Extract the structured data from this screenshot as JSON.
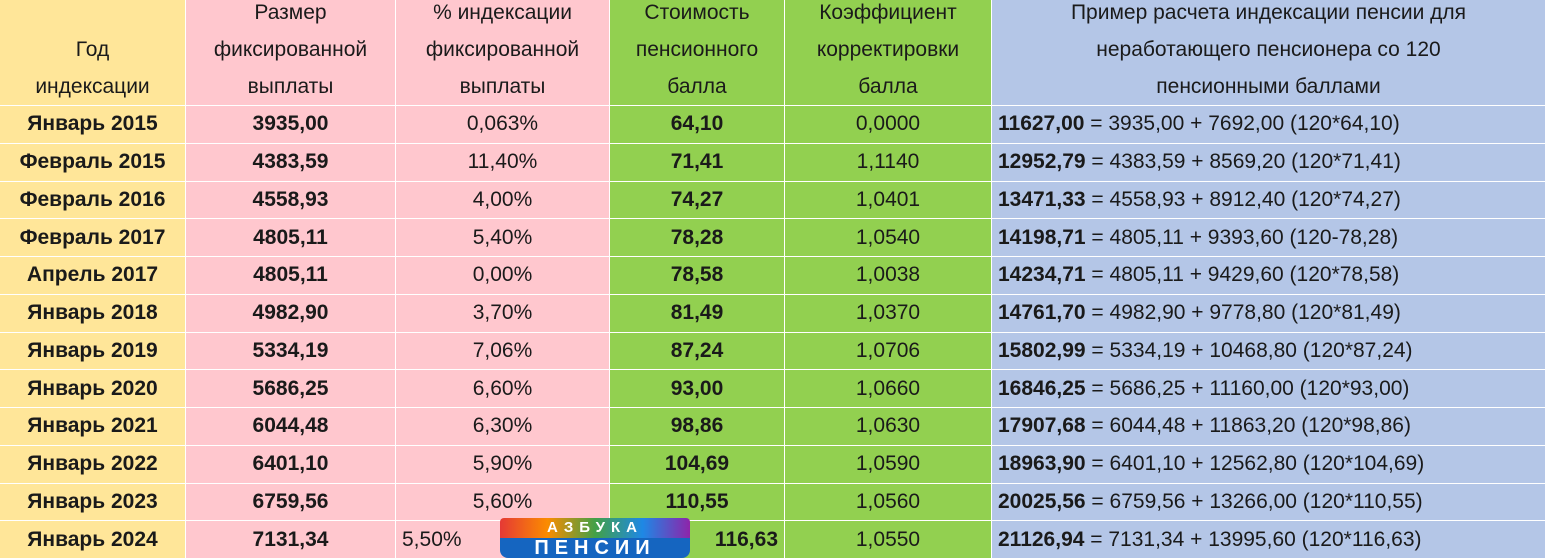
{
  "table": {
    "header": [
      [
        "Год",
        "индексации"
      ],
      [
        "Размер",
        "фиксированной",
        "выплаты"
      ],
      [
        "% индексации",
        "фиксированной",
        "выплаты"
      ],
      [
        "Стоимость",
        "пенсионного",
        "балла"
      ],
      [
        "Коэффициент",
        "корректировки",
        "балла"
      ],
      [
        "Пример расчета индексации пенсии для",
        "неработающего пенсионера со 120",
        "пенсионными баллами"
      ]
    ],
    "rows": [
      [
        "Январь 2015",
        "3935,00",
        "0,063%",
        "64,10",
        "0,0000",
        "11627,00",
        " = 3935,00 + 7692,00 (120*64,10)"
      ],
      [
        "Февраль 2015",
        "4383,59",
        "11,40%",
        "71,41",
        "1,1140",
        "12952,79",
        " = 4383,59 + 8569,20 (120*71,41)"
      ],
      [
        "Февраль 2016",
        "4558,93",
        "4,00%",
        "74,27",
        "1,0401",
        "13471,33",
        " = 4558,93 + 8912,40 (120*74,27)"
      ],
      [
        "Февраль 2017",
        "4805,11",
        "5,40%",
        "78,28",
        "1,0540",
        "14198,71",
        " = 4805,11 + 9393,60 (120-78,28)"
      ],
      [
        "Апрель 2017",
        "4805,11",
        "0,00%",
        "78,58",
        "1,0038",
        "14234,71",
        " = 4805,11 + 9429,60 (120*78,58)"
      ],
      [
        "Январь 2018",
        "4982,90",
        "3,70%",
        "81,49",
        "1,0370",
        "14761,70",
        " = 4982,90 + 9778,80 (120*81,49)"
      ],
      [
        "Январь 2019",
        "5334,19",
        "7,06%",
        "87,24",
        "1,0706",
        "15802,99",
        " = 5334,19 + 10468,80 (120*87,24)"
      ],
      [
        "Январь 2020",
        "5686,25",
        "6,60%",
        "93,00",
        "1,0660",
        "16846,25",
        " = 5686,25 + 11160,00 (120*93,00)"
      ],
      [
        "Январь 2021",
        "6044,48",
        "6,30%",
        "98,86",
        "1,0630",
        "17907,68",
        " = 6044,48 + 11863,20 (120*98,86)"
      ],
      [
        "Январь 2022",
        "6401,10",
        "5,90%",
        "104,69",
        "1,0590",
        "18963,90",
        " = 6401,10 + 12562,80 (120*104,69)"
      ],
      [
        "Январь 2023",
        "6759,56",
        "5,60%",
        "110,55",
        "1,0560",
        "20025,56",
        " = 6759,56 + 13266,00 (120*110,55)"
      ],
      [
        "Январь 2024",
        "7131,34",
        "5,50%",
        "116,63",
        "1,0550",
        "21126,94",
        " = 7131,34 + 13995,60 (120*116,63)"
      ]
    ]
  },
  "logo": {
    "top": "АЗБУКА",
    "bottom": "ПЕНСИИ"
  }
}
